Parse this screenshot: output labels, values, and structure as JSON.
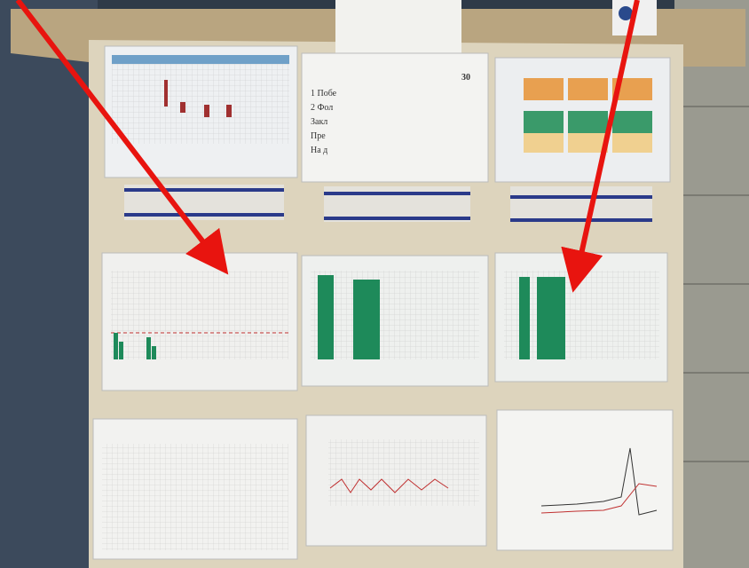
{
  "sheet": {
    "lines": [
      "1 Побе",
      "2 Фол",
      "Закл",
      "Пре",
      "На д"
    ],
    "number": "30"
  }
}
